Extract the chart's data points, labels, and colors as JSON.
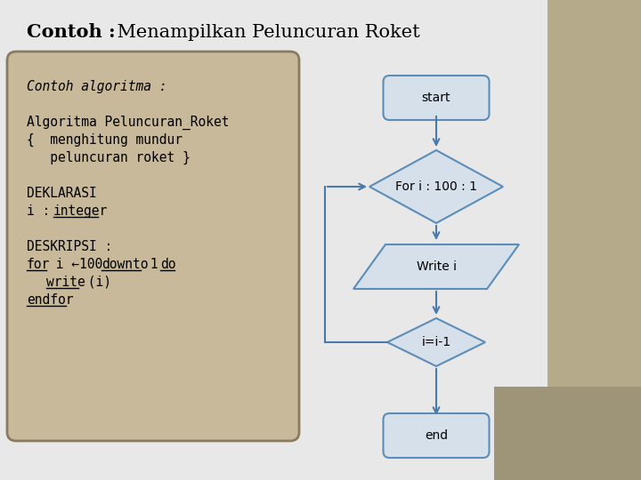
{
  "title_bold": "Contoh :",
  "title_regular": " Menampilkan Peluncuran Roket",
  "bg_color": "#e8e8e8",
  "right_bg_color": "#b5aa8a",
  "bottom_right_color": "#9e9478",
  "left_box_color": "#c8b99a",
  "left_box_edge_color": "#8a7a60",
  "flowchart_box_color": "#d6e0ea",
  "flowchart_box_edge": "#5b8db8",
  "arrow_color": "#4a7aaa",
  "node_start": "start",
  "node_for": "For i : 100 : 1",
  "node_write": "Write i",
  "node_assign": "i=i-1",
  "node_end": "end"
}
